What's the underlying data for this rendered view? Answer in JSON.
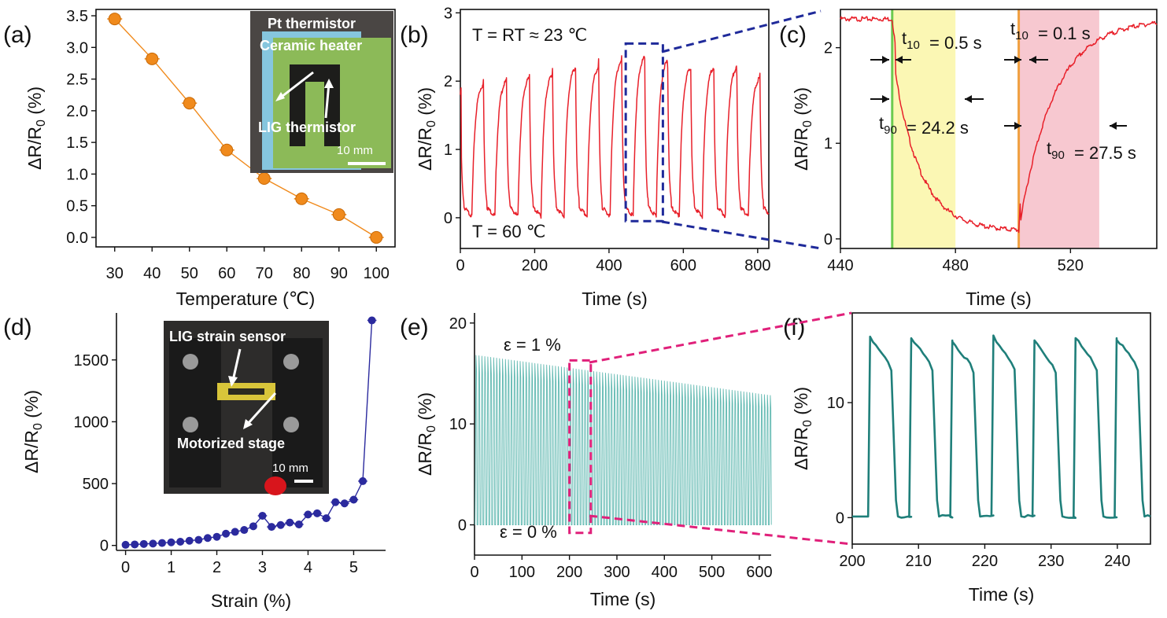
{
  "chart_data": [
    {
      "id": "a",
      "panel_label": "(a)",
      "type": "scatter",
      "xlabel": "Temperature (℃)",
      "ylabel": "ΔR/R₀ (%)",
      "xlim": [
        25,
        105
      ],
      "ylim": [
        -0.15,
        3.6
      ],
      "xticks": [
        30,
        40,
        50,
        60,
        70,
        80,
        90,
        100
      ],
      "yticks": [
        0.0,
        0.5,
        1.0,
        1.5,
        2.0,
        2.5,
        3.0,
        3.5
      ],
      "ytick_labels": [
        "0.0",
        "0.5",
        "1.0",
        "1.5",
        "2.0",
        "2.5",
        "3.0",
        "3.5"
      ],
      "series": [
        {
          "name": "LIG thermistor",
          "color": "#f08a1c",
          "x": [
            30,
            40,
            50,
            60,
            70,
            80,
            90,
            100
          ],
          "y": [
            3.45,
            2.82,
            2.12,
            1.38,
            0.93,
            0.61,
            0.36,
            0.0
          ],
          "xerr": [
            2,
            2,
            2,
            2,
            2,
            2,
            2,
            2
          ]
        }
      ],
      "inset": {
        "labels": [
          "Pt thermistor",
          "Ceramic heater",
          "LIG thermistor"
        ],
        "scale_text": "10 mm"
      }
    },
    {
      "id": "b",
      "panel_label": "(b)",
      "type": "line",
      "xlabel": "Time (s)",
      "ylabel": "ΔR/R₀ (%)",
      "xlim": [
        0,
        830
      ],
      "ylim": [
        -0.45,
        3.05
      ],
      "xticks": [
        0,
        200,
        400,
        600,
        800
      ],
      "yticks": [
        0,
        1,
        2,
        3
      ],
      "color": "#e8202a",
      "cycle_period_s": 62,
      "peak_values": [
        1.95,
        2.0,
        2.05,
        2.1,
        2.2,
        2.2,
        2.3,
        2.35,
        2.3,
        2.2,
        2.2,
        2.2,
        2.05,
        2.1
      ],
      "min_value": 0.02,
      "annotations": [
        "T = RT ≈ 23 ℃",
        "T = 60 ℃"
      ],
      "zoom_box": {
        "x": [
          445,
          545
        ],
        "y": [
          -0.05,
          2.55
        ],
        "color": "#1f2a9a"
      }
    },
    {
      "id": "c",
      "panel_label": "(c)",
      "type": "line",
      "xlabel": "Time (s)",
      "ylabel": "ΔR/R₀ (%)",
      "xlim": [
        440,
        550
      ],
      "ylim": [
        -0.1,
        2.4
      ],
      "xticks": [
        440,
        480,
        520
      ],
      "yticks": [
        0,
        1,
        2
      ],
      "color": "#e8202a",
      "segments": [
        {
          "t_start": 440,
          "t_end": 458,
          "value": 2.3
        },
        {
          "t_start": 458,
          "t_end": 502,
          "decay_to": 0.08,
          "t90": 24.2
        },
        {
          "t_start": 502,
          "t_end": 550,
          "rise_to": 2.3,
          "t90": 27.5
        }
      ],
      "shaded": [
        {
          "x": [
            458,
            480
          ],
          "color": "#fbf7b4"
        },
        {
          "x": [
            502,
            530
          ],
          "color": "#f7c8d0"
        }
      ],
      "vlines": [
        {
          "x": 458,
          "color": "#6ccb4f"
        },
        {
          "x": 502,
          "color": "#f0a040"
        }
      ],
      "annotations": {
        "t10_fall": "= 0.5 s",
        "t90_fall": "= 24.2 s",
        "t10_rise": "= 0.1 s",
        "t90_rise": "= 27.5 s"
      }
    },
    {
      "id": "d",
      "panel_label": "(d)",
      "type": "scatter",
      "xlabel": "Strain (%)",
      "ylabel": "ΔR/R₀ (%)",
      "xlim": [
        -0.2,
        5.7
      ],
      "ylim": [
        -40,
        1880
      ],
      "xticks": [
        0,
        1,
        2,
        3,
        4,
        5
      ],
      "yticks": [
        0,
        500,
        1000,
        1500
      ],
      "color": "#2b2a9e",
      "x": [
        0,
        0.2,
        0.4,
        0.6,
        0.8,
        1.0,
        1.2,
        1.4,
        1.6,
        1.8,
        2.0,
        2.2,
        2.4,
        2.6,
        2.8,
        3.0,
        3.2,
        3.4,
        3.6,
        3.8,
        4.0,
        4.2,
        4.4,
        4.6,
        4.8,
        5.0,
        5.2,
        5.4
      ],
      "y": [
        5,
        8,
        12,
        15,
        20,
        25,
        30,
        38,
        45,
        60,
        70,
        95,
        110,
        125,
        155,
        240,
        150,
        165,
        185,
        170,
        250,
        260,
        220,
        350,
        340,
        370,
        520,
        1820
      ],
      "inset": {
        "labels": [
          "LIG strain sensor",
          "Motorized stage"
        ],
        "scale_text": "10 mm"
      }
    },
    {
      "id": "e",
      "panel_label": "(e)",
      "type": "line",
      "xlabel": "Time (s)",
      "ylabel": "ΔR/R₀ (%)",
      "xlim": [
        0,
        625
      ],
      "ylim": [
        -3,
        21
      ],
      "xticks": [
        0,
        100,
        200,
        300,
        400,
        500,
        600
      ],
      "yticks": [
        0,
        10,
        20
      ],
      "color": "#5fb8b0",
      "cycle_period_s": 6.2,
      "peak_start": 16.8,
      "peak_end": 12.8,
      "min_value": 0,
      "annotations": [
        "ε = 1 %",
        "ε = 0 %"
      ],
      "zoom_box": {
        "x": [
          200,
          245
        ],
        "y": [
          -0.8,
          16.3
        ],
        "color": "#e0207a"
      }
    },
    {
      "id": "f",
      "panel_label": "(f)",
      "type": "line",
      "xlabel": "Time (s)",
      "ylabel": "ΔR/R₀ (%)",
      "xlim": [
        200,
        245
      ],
      "ylim": [
        -2.3,
        17.8
      ],
      "xticks": [
        200,
        210,
        220,
        230,
        240
      ],
      "yticks": [
        0,
        10
      ],
      "color": "#1f7f7a",
      "cycle_starts": [
        203.0,
        209.2,
        215.4,
        221.6,
        227.8,
        234.0,
        240.2
      ],
      "peak_values": [
        15.6,
        15.6,
        15.4,
        15.7,
        15.4,
        15.6,
        15.6
      ],
      "min_value": 0.1
    }
  ]
}
